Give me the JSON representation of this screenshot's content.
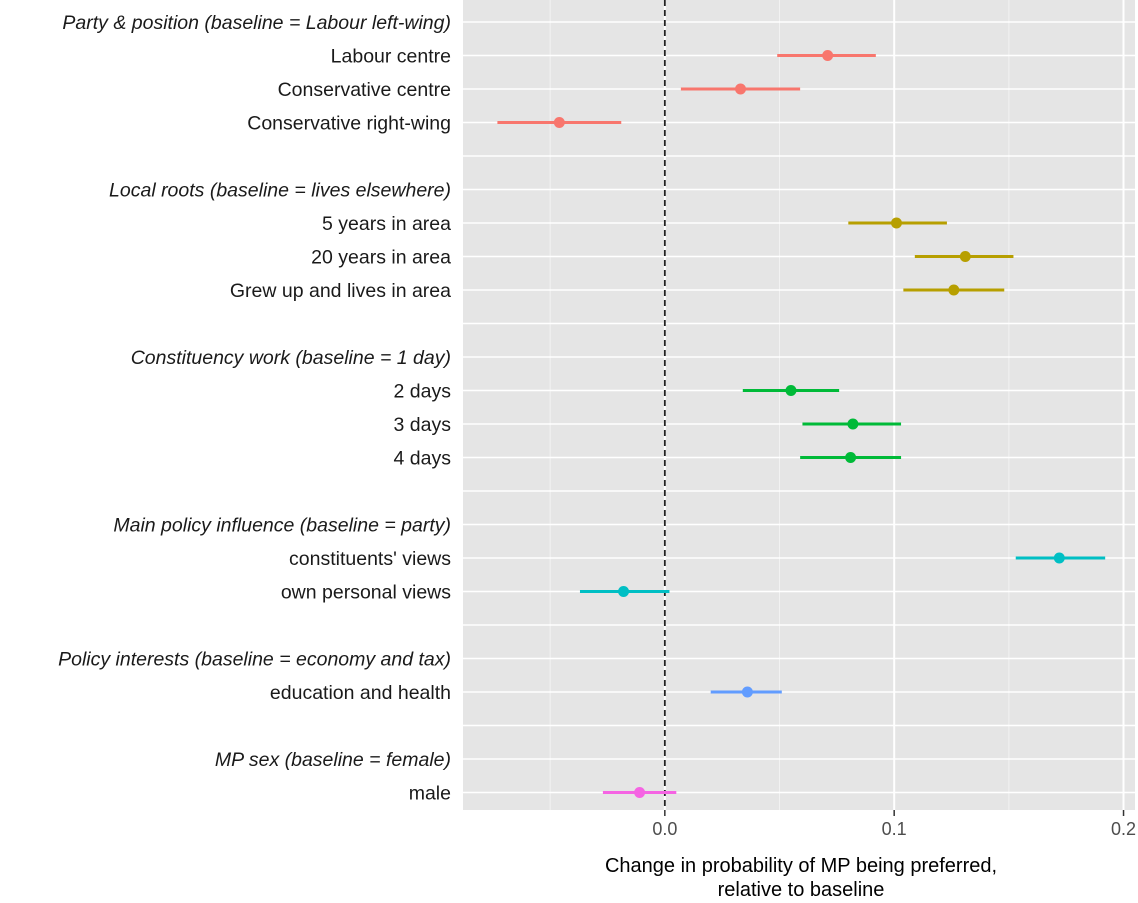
{
  "chart_data": {
    "type": "scatter",
    "subtype": "coefficient plot with confidence intervals",
    "xlabel": [
      "Change in probability of MP being preferred,",
      "relative to baseline"
    ],
    "xlim": [
      -0.088,
      0.205
    ],
    "xticks": [
      0.0,
      0.1,
      0.2
    ],
    "xtick_labels": [
      "0.0",
      "0.1",
      "0.2"
    ],
    "reference_line": {
      "x": 0,
      "style": "dashed"
    },
    "grid": true,
    "groups": [
      {
        "label": "Party & position (baseline = Labour left-wing)",
        "color": "#F8766D",
        "items": [
          {
            "label": "Labour centre",
            "estimate": 0.071,
            "low": 0.049,
            "high": 0.092
          },
          {
            "label": "Conservative centre",
            "estimate": 0.033,
            "low": 0.007,
            "high": 0.059
          },
          {
            "label": "Conservative right-wing",
            "estimate": -0.046,
            "low": -0.073,
            "high": -0.019
          }
        ]
      },
      {
        "label": "Local roots (baseline = lives elsewhere)",
        "color": "#B79F00",
        "items": [
          {
            "label": "5 years in area",
            "estimate": 0.101,
            "low": 0.08,
            "high": 0.123
          },
          {
            "label": "20 years in area",
            "estimate": 0.131,
            "low": 0.109,
            "high": 0.152
          },
          {
            "label": "Grew up and lives in area",
            "estimate": 0.126,
            "low": 0.104,
            "high": 0.148
          }
        ]
      },
      {
        "label": "Constituency work (baseline = 1 day)",
        "color": "#00BA38",
        "items": [
          {
            "label": "2 days",
            "estimate": 0.055,
            "low": 0.034,
            "high": 0.076
          },
          {
            "label": "3 days",
            "estimate": 0.082,
            "low": 0.06,
            "high": 0.103
          },
          {
            "label": "4 days",
            "estimate": 0.081,
            "low": 0.059,
            "high": 0.103
          }
        ]
      },
      {
        "label": "Main policy influence (baseline = party)",
        "color": "#00BFC4",
        "items": [
          {
            "label": "constituents' views",
            "estimate": 0.172,
            "low": 0.153,
            "high": 0.192
          },
          {
            "label": "own personal views",
            "estimate": -0.018,
            "low": -0.037,
            "high": 0.002
          }
        ]
      },
      {
        "label": "Policy interests (baseline = economy and tax)",
        "color": "#619CFF",
        "items": [
          {
            "label": "education and health",
            "estimate": 0.036,
            "low": 0.02,
            "high": 0.051
          }
        ]
      },
      {
        "label": "MP sex (baseline = female)",
        "color": "#F564E3",
        "items": [
          {
            "label": "male",
            "estimate": -0.011,
            "low": -0.027,
            "high": 0.005
          }
        ]
      }
    ]
  }
}
